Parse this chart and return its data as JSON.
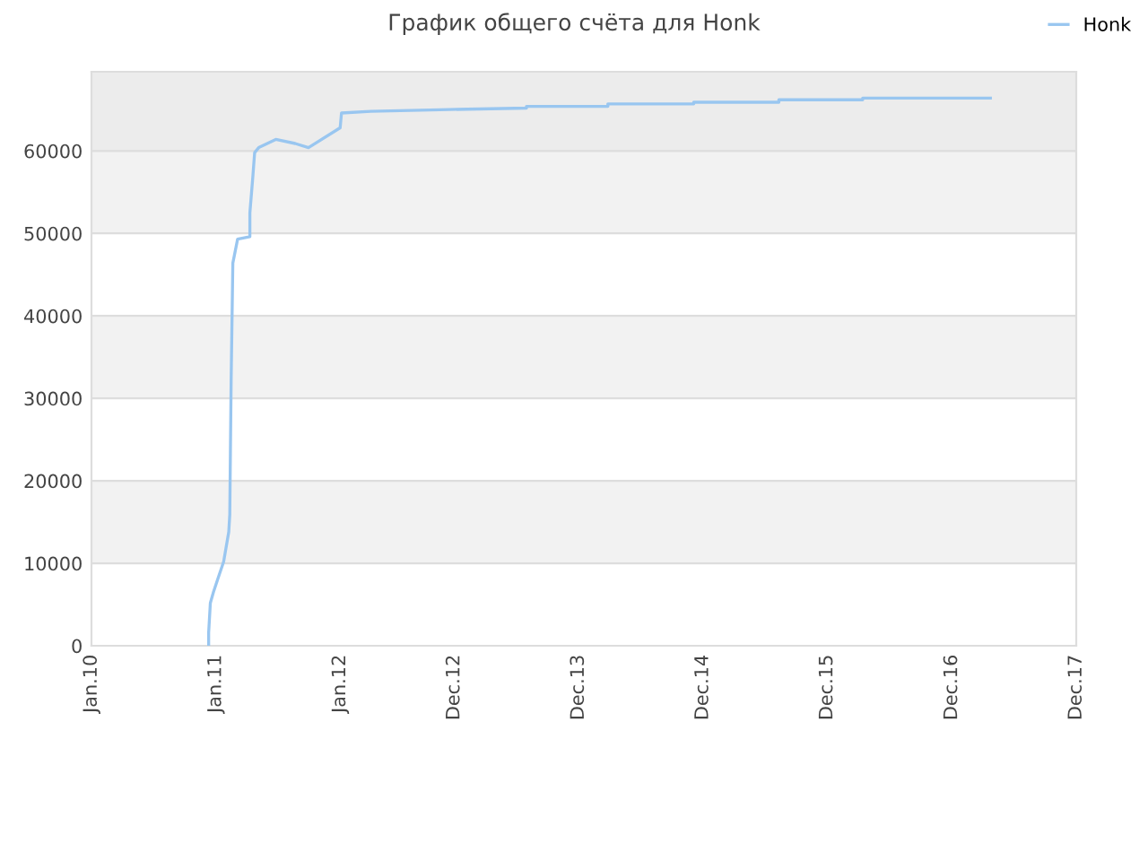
{
  "chart_data": {
    "type": "line",
    "title": "График общего счёта для Honk",
    "x": [
      "2010-12-11",
      "2010-12-11",
      "2010-12-16",
      "2010-12-25",
      "2011-01-06",
      "2011-01-24",
      "2011-02-08",
      "2011-02-11",
      "2011-02-15",
      "2011-02-20",
      "2011-03-06",
      "2011-04-11",
      "2011-04-11",
      "2011-04-19",
      "2011-04-25",
      "2011-05-07",
      "2011-06-26",
      "2011-08-22",
      "2011-09-30",
      "2012-01-01",
      "2012-01-05",
      "2012-03-31",
      "2012-10-20",
      "2013-07-01",
      "2013-07-01",
      "2014-02-25",
      "2014-02-25",
      "2014-11-04",
      "2014-11-04",
      "2015-07-12",
      "2015-07-12",
      "2016-03-14",
      "2016-03-14",
      "2016-11-20",
      "2016-11-20",
      "2017-03-24"
    ],
    "series": [
      {
        "name": "Honk",
        "color": "#99c6f0",
        "values": [
          0,
          1600,
          5200,
          6500,
          8000,
          10200,
          13800,
          15900,
          32200,
          46400,
          49300,
          49600,
          52500,
          56500,
          59800,
          60400,
          61400,
          60900,
          60400,
          62800,
          64600,
          64800,
          65000,
          65200,
          65400,
          65400,
          65700,
          65700,
          65900,
          65900,
          66200,
          66200,
          66400,
          66400,
          66400,
          66400
        ]
      }
    ],
    "xlim": [
      "2010-01-01",
      "2017-12-01"
    ],
    "xticks": [
      {
        "value": "2010-01-01",
        "label": "Jan.10"
      },
      {
        "value": "2011-01-01",
        "label": "Jan.11"
      },
      {
        "value": "2012-01-01",
        "label": "Jan.12"
      },
      {
        "value": "2012-12-01",
        "label": "Dec.12"
      },
      {
        "value": "2013-12-01",
        "label": "Dec.13"
      },
      {
        "value": "2014-12-01",
        "label": "Dec.14"
      },
      {
        "value": "2015-12-01",
        "label": "Dec.15"
      },
      {
        "value": "2016-12-01",
        "label": "Dec.16"
      },
      {
        "value": "2017-12-01",
        "label": "Dec.17"
      }
    ],
    "ylim": [
      0,
      69600
    ],
    "yticks": [
      0,
      10000,
      20000,
      30000,
      40000,
      50000,
      60000
    ],
    "bands": [
      {
        "axis": "y",
        "from": 10000,
        "to": 20000,
        "color": "#f2f2f2"
      },
      {
        "axis": "y",
        "from": 30000,
        "to": 40000,
        "color": "#f2f2f2"
      },
      {
        "axis": "y",
        "from": 50000,
        "to": 60000,
        "color": "#f2f2f2"
      },
      {
        "axis": "y",
        "from": 60000,
        "to": 69600,
        "color": "#ececec"
      }
    ],
    "grid": "y",
    "legend": "top right",
    "marker": "none",
    "line_style": "solid"
  }
}
